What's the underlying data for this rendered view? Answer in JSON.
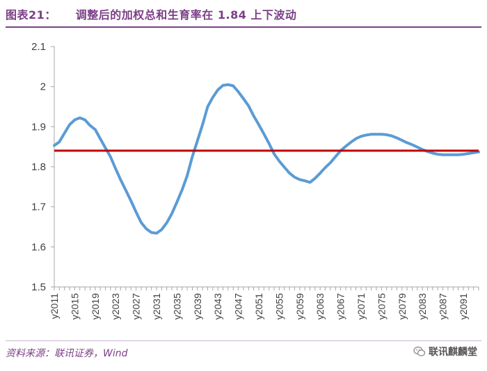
{
  "header": {
    "label": "图表21：",
    "title": "调整后的加权总和生育率在 1.84 上下波动"
  },
  "footer": {
    "source": "资料来源：联讯证券，Wind",
    "watermark": "联讯麒麟堂",
    "watermark_icon": "wechat-icon"
  },
  "chart_data": {
    "type": "line",
    "xlabel": "",
    "ylabel": "",
    "ylim": [
      1.5,
      2.1
    ],
    "yticks": [
      1.5,
      1.6,
      1.7,
      1.8,
      1.9,
      2,
      2.1
    ],
    "ytick_labels": [
      "1.5",
      "1.6",
      "1.7",
      "1.8",
      "1.9",
      "2",
      "2.1"
    ],
    "xlim": [
      2011,
      2094
    ],
    "xtick_labels": [
      "y2011",
      "y2015",
      "y2019",
      "y2023",
      "y2027",
      "y2031",
      "y2035",
      "y2039",
      "y2043",
      "y2047",
      "y2051",
      "y2055",
      "y2059",
      "y2063",
      "y2067",
      "y2071",
      "y2075",
      "y2079",
      "y2083",
      "y2087",
      "y2091"
    ],
    "xtick_years": [
      2011,
      2015,
      2019,
      2023,
      2027,
      2031,
      2035,
      2039,
      2043,
      2047,
      2051,
      2055,
      2059,
      2063,
      2067,
      2071,
      2075,
      2079,
      2083,
      2087,
      2091
    ],
    "grid": false,
    "legend": "none",
    "colors": {
      "series": "#5b9bd5",
      "reference": "#c00000",
      "axis": "#a6a6a6",
      "text": "#404040"
    },
    "series": [
      {
        "x": [
          2011,
          2012,
          2013,
          2014,
          2015,
          2016,
          2017,
          2018,
          2019,
          2020,
          2021,
          2022,
          2023,
          2024,
          2025,
          2026,
          2027,
          2028,
          2029,
          2030,
          2031,
          2032,
          2033,
          2034,
          2035,
          2036,
          2037,
          2038,
          2039,
          2040,
          2041,
          2042,
          2043,
          2044,
          2045,
          2046,
          2047,
          2048,
          2049,
          2050,
          2051,
          2052,
          2053,
          2054,
          2055,
          2056,
          2057,
          2058,
          2059,
          2060,
          2061,
          2062,
          2063,
          2064,
          2065,
          2066,
          2067,
          2068,
          2069,
          2070,
          2071,
          2072,
          2073,
          2074,
          2075,
          2076,
          2077,
          2078,
          2079,
          2080,
          2081,
          2082,
          2083,
          2084,
          2085,
          2086,
          2087,
          2088,
          2089,
          2090,
          2091,
          2092,
          2093,
          2094
        ],
        "values": [
          1.853,
          1.862,
          1.884,
          1.905,
          1.917,
          1.922,
          1.917,
          1.903,
          1.893,
          1.87,
          1.847,
          1.825,
          1.795,
          1.767,
          1.741,
          1.715,
          1.687,
          1.661,
          1.645,
          1.636,
          1.634,
          1.643,
          1.66,
          1.683,
          1.712,
          1.742,
          1.778,
          1.825,
          1.865,
          1.905,
          1.95,
          1.973,
          1.992,
          2.003,
          2.005,
          2.002,
          1.987,
          1.97,
          1.952,
          1.927,
          1.905,
          1.882,
          1.858,
          1.832,
          1.814,
          1.799,
          1.784,
          1.774,
          1.768,
          1.765,
          1.761,
          1.771,
          1.784,
          1.798,
          1.81,
          1.825,
          1.84,
          1.851,
          1.861,
          1.87,
          1.876,
          1.879,
          1.881,
          1.881,
          1.881,
          1.88,
          1.877,
          1.872,
          1.866,
          1.86,
          1.855,
          1.849,
          1.843,
          1.838,
          1.834,
          1.831,
          1.83,
          1.83,
          1.83,
          1.83,
          1.831,
          1.833,
          1.835,
          1.837
        ]
      }
    ],
    "reference_line": {
      "y": 1.84,
      "x_start": 2011,
      "x_end": 2094
    }
  }
}
